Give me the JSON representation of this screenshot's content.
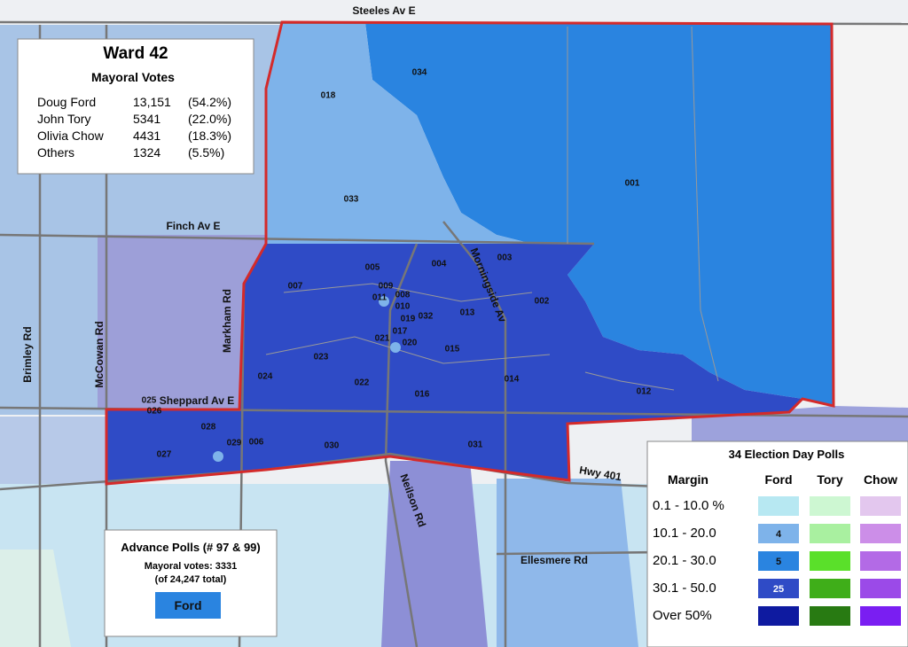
{
  "summary": {
    "title": "Ward 42",
    "subtitle": "Mayoral Votes",
    "rows": [
      [
        "Doug Ford",
        "13,151",
        "(54.2%)"
      ],
      [
        "John Tory",
        "5341",
        "(22.0%)"
      ],
      [
        "Olivia Chow",
        "4431",
        "(18.3%)"
      ],
      [
        "Others",
        "1324",
        "(5.5%)"
      ]
    ]
  },
  "roads": [
    "Steeles Av E",
    "Finch Av E",
    "Markham Rd",
    "McCowan Rd",
    "Brimley Rd",
    "Sheppard Av E",
    "Morningside Av",
    "Neilson Rd",
    "Hwy 401",
    "Ellesmere Rd"
  ],
  "polls": [
    "001",
    "002",
    "003",
    "004",
    "005",
    "006",
    "007",
    "008",
    "009",
    "010",
    "011",
    "012",
    "013",
    "014",
    "015",
    "016",
    "017",
    "018",
    "019",
    "020",
    "021",
    "022",
    "023",
    "024",
    "025",
    "026",
    "027",
    "028",
    "029",
    "030",
    "031",
    "032",
    "033",
    "034"
  ],
  "legend": {
    "title": "34 Election Day Polls",
    "headers": [
      "Margin",
      "Ford",
      "Tory",
      "Chow"
    ],
    "rows": [
      {
        "range": "0.1 - 10.0 %",
        "ford": null
      },
      {
        "range": "10.1 - 20.0",
        "ford": "4"
      },
      {
        "range": "20.1 - 30.0",
        "ford": "5"
      },
      {
        "range": "30.1 - 50.0",
        "ford": "25"
      },
      {
        "range": "Over 50%",
        "ford": null
      }
    ]
  },
  "advance": {
    "title": "Advance Polls (# 97 & 99)",
    "line1": "Mayoral votes: 3331",
    "line2": "(of 24,247 total)",
    "winner": "Ford"
  }
}
